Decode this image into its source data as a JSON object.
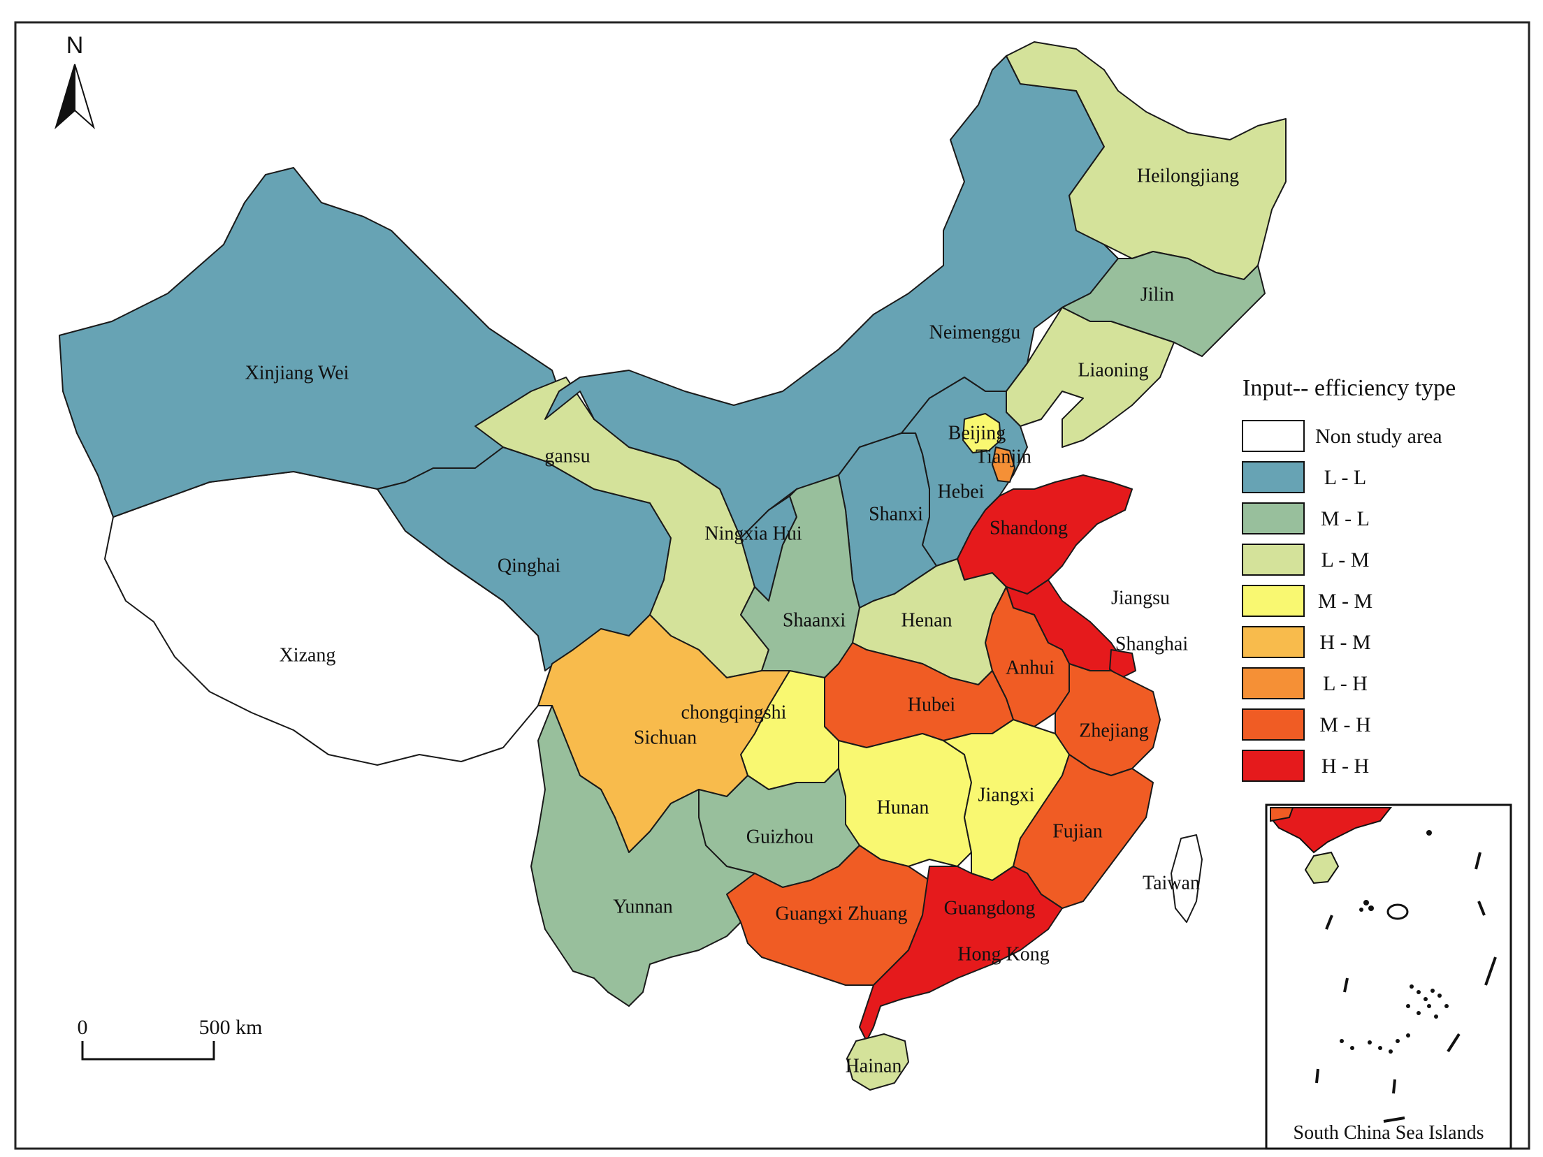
{
  "legend": {
    "title": "Input-- efficiency type",
    "items": [
      {
        "label": "Non study area",
        "color": "#ffffff"
      },
      {
        "label": "L - L",
        "color": "#67a3b4"
      },
      {
        "label": "M - L",
        "color": "#98bf9c"
      },
      {
        "label": "L - M",
        "color": "#d4e29a"
      },
      {
        "label": "M - M",
        "color": "#f9f871"
      },
      {
        "label": "H - M",
        "color": "#f8bb4c"
      },
      {
        "label": "L - H",
        "color": "#f59036"
      },
      {
        "label": "M - H",
        "color": "#f05c24"
      },
      {
        "label": "H - H",
        "color": "#e51a1c"
      }
    ]
  },
  "north_arrow": {
    "letter": "N"
  },
  "scale_bar": {
    "zero": "0",
    "distance": "500 km"
  },
  "inset": {
    "title": "South China Sea Islands"
  },
  "provinces": {
    "xinjiang": {
      "label": "Xinjiang Wei",
      "type": "L - L"
    },
    "xizang": {
      "label": "Xizang",
      "type": "Non study area"
    },
    "qinghai": {
      "label": "Qinghai",
      "type": "L - L"
    },
    "gansu": {
      "label": "gansu",
      "type": "L - M"
    },
    "neimenggu": {
      "label": "Neimenggu",
      "type": "L - L"
    },
    "heilongjiang": {
      "label": "Heilongjiang",
      "type": "L - M"
    },
    "jilin": {
      "label": "Jilin",
      "type": "M - L"
    },
    "liaoning": {
      "label": "Liaoning",
      "type": "L - M"
    },
    "beijing": {
      "label": "Beijing",
      "type": "M - M"
    },
    "tianjin": {
      "label": "Tianjin",
      "type": "L - H"
    },
    "hebei": {
      "label": "Hebei",
      "type": "L - L"
    },
    "shanxi": {
      "label": "Shanxi",
      "type": "L - L"
    },
    "ningxia": {
      "label": "Ningxia Hui",
      "type": "L - L"
    },
    "shaanxi": {
      "label": "Shaanxi",
      "type": "M - L"
    },
    "shandong": {
      "label": "Shandong",
      "type": "H - H"
    },
    "henan": {
      "label": "Henan",
      "type": "L - M"
    },
    "jiangsu": {
      "label": "Jiangsu",
      "type": "H - H"
    },
    "shanghai": {
      "label": "Shanghai",
      "type": "H - H"
    },
    "anhui": {
      "label": "Anhui",
      "type": "M - H"
    },
    "hubei": {
      "label": "Hubei",
      "type": "M - H"
    },
    "chongqing": {
      "label": "chongqingshi",
      "type": "M - M"
    },
    "sichuan": {
      "label": "Sichuan",
      "type": "H - M"
    },
    "zhejiang": {
      "label": "Zhejiang",
      "type": "M - H"
    },
    "hunan": {
      "label": "Hunan",
      "type": "M - M"
    },
    "jiangxi": {
      "label": "Jiangxi",
      "type": "M - M"
    },
    "fujian": {
      "label": "Fujian",
      "type": "M - H"
    },
    "guizhou": {
      "label": "Guizhou",
      "type": "M - L"
    },
    "yunnan": {
      "label": "Yunnan",
      "type": "M - L"
    },
    "guangxi": {
      "label": "Guangxi Zhuang",
      "type": "M - H"
    },
    "guangdong": {
      "label": "Guangdong",
      "type": "H - H"
    },
    "hongkong": {
      "label": "Hong Kong",
      "type": "H - H"
    },
    "hainan": {
      "label": "Hainan",
      "type": "L - M"
    },
    "taiwan": {
      "label": "Taiwan",
      "type": "Non study area"
    }
  }
}
